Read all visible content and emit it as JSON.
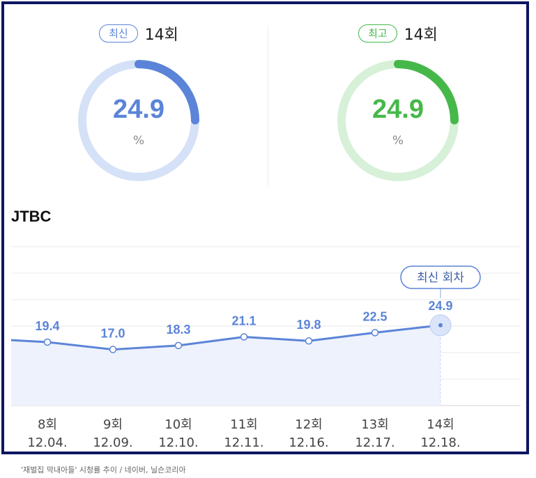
{
  "gauges": [
    {
      "badge": "최신",
      "episode": "14회",
      "value": "24.9",
      "unit": "%",
      "color": "#5b84d8",
      "track": "#d5e1f7",
      "fraction": 0.249
    },
    {
      "badge": "최고",
      "episode": "14회",
      "value": "24.9",
      "unit": "%",
      "color": "#46b84a",
      "track": "#d7f0d8",
      "fraction": 0.249
    }
  ],
  "network": "JTBC",
  "latest_label": "최신 회차",
  "colors": {
    "line": "#5b84d8",
    "fill": "#eef2fc",
    "grid": "#e8eaee",
    "label": "#5b84d8"
  },
  "chart_data": {
    "type": "line",
    "categories": [
      "8회",
      "9회",
      "10회",
      "11회",
      "12회",
      "13회",
      "14회"
    ],
    "dates": [
      "12.04.",
      "12.09.",
      "12.10.",
      "12.11.",
      "12.16.",
      "12.17.",
      "12.18."
    ],
    "series": [
      {
        "values": [
          19.4,
          17.0,
          18.3,
          21.1,
          19.8,
          22.5,
          24.9
        ]
      }
    ],
    "value_labels": [
      "19.4",
      "17.0",
      "18.3",
      "21.1",
      "19.8",
      "22.5",
      "24.9"
    ],
    "grid": true
  },
  "caption": "'재벌집 막내아들' 시청률 추이 / 네이버, 닐슨코리아"
}
